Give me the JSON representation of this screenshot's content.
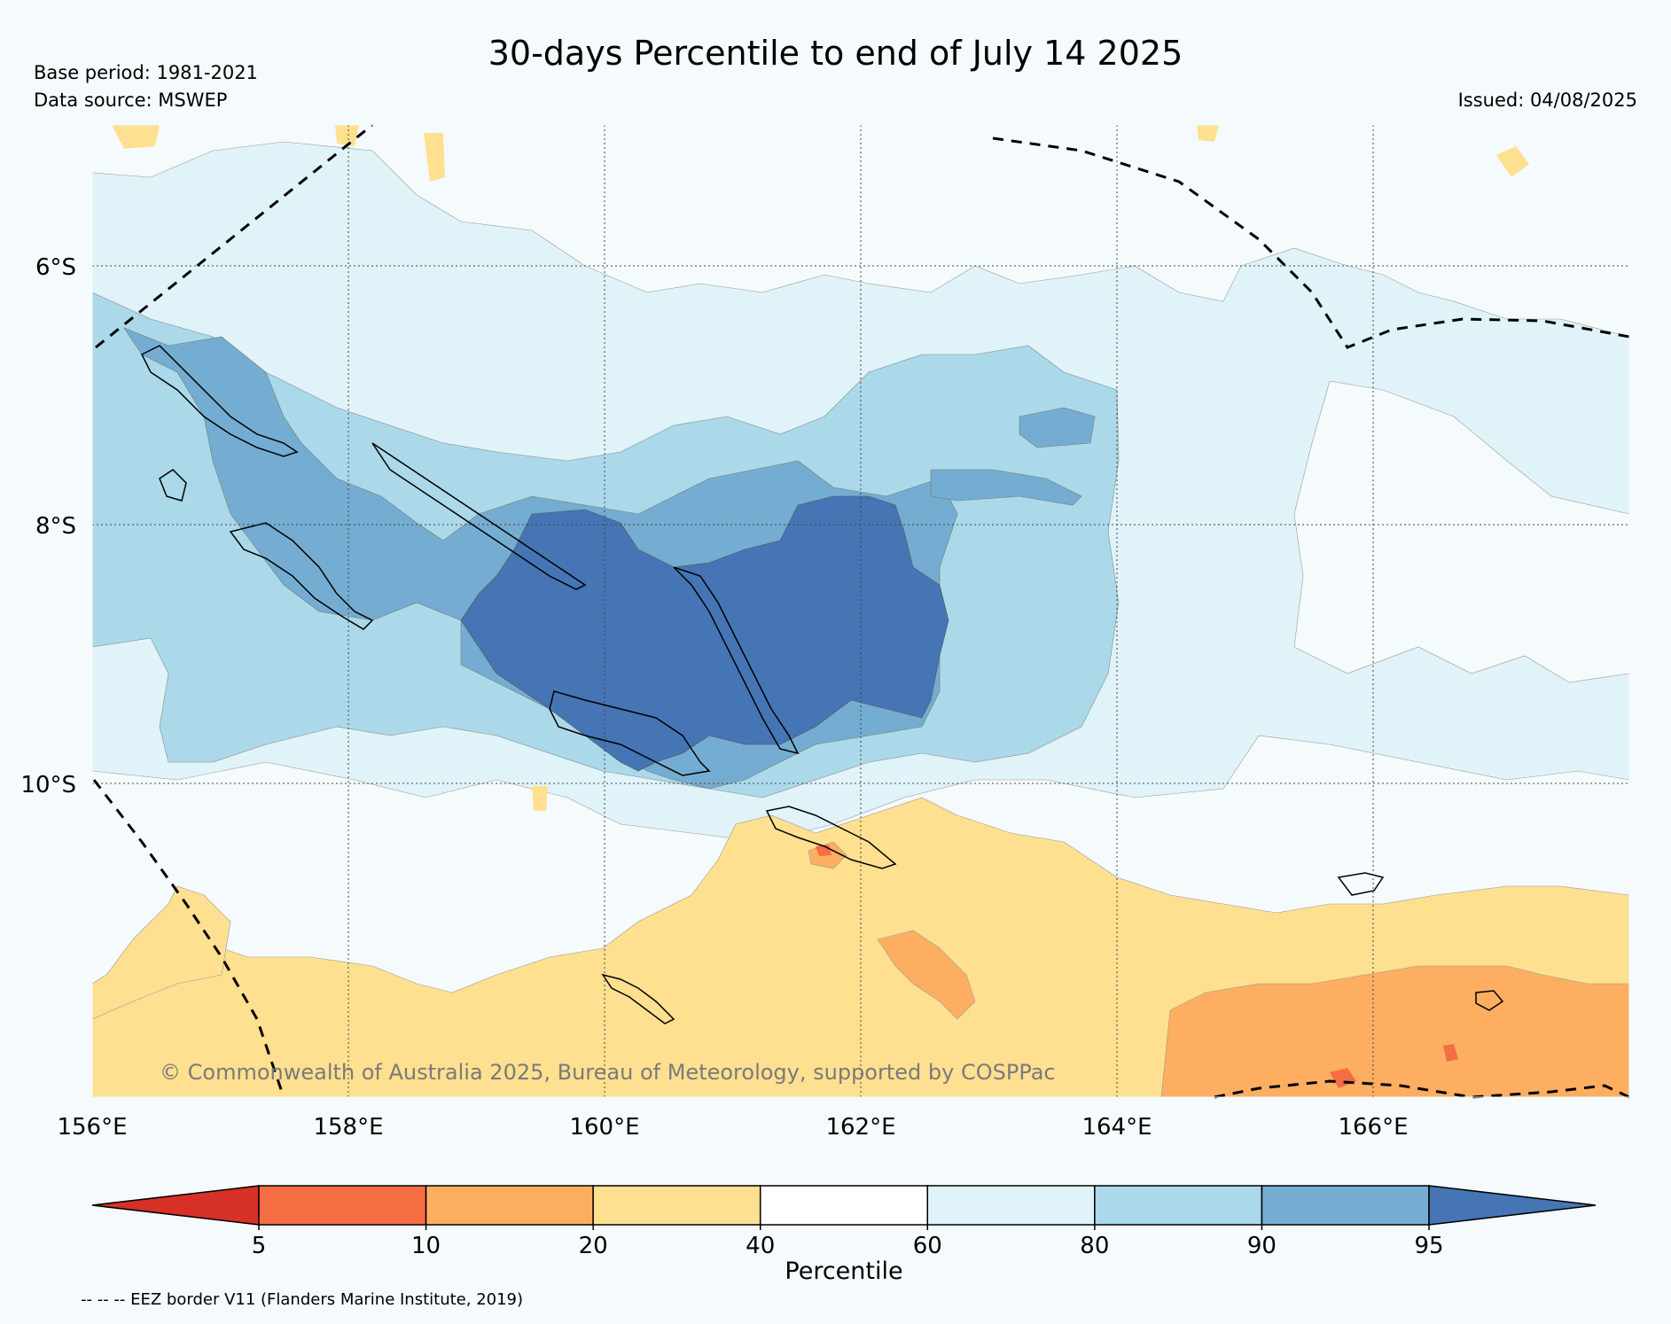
{
  "title": "30-days Percentile to end of July 14 2025",
  "base_period": "Base period: 1981-2021",
  "data_source": "Data source: MSWEP",
  "issued": "Issued: 04/08/2025",
  "copyright": "© Commonwealth of Australia 2025, Bureau of Meteorology, supported by COSPPac",
  "eez_note": "-- -- -- EEZ border V11 (Flanders Marine Institute, 2019)",
  "map": {
    "lat_labels": [
      "6°S",
      "8°S",
      "10°S"
    ],
    "lon_labels": [
      "156°E",
      "158°E",
      "160°E",
      "162°E",
      "164°E",
      "166°E"
    ],
    "extent": {
      "lon": [
        156,
        168
      ],
      "lat": [
        -12.4,
        -4.8
      ]
    }
  },
  "colorbar": {
    "label": "Percentile",
    "ticks": [
      "5",
      "10",
      "20",
      "40",
      "60",
      "80",
      "90",
      "95"
    ],
    "colors": [
      "#d73027",
      "#f46d43",
      "#fdae61",
      "#fee090",
      "#ffffff",
      "#e0f3f8",
      "#abd9e9",
      "#74add1",
      "#4575b4"
    ]
  },
  "colors": {
    "background": "#f5fafc",
    "coast": "#000000",
    "eez": "#000000"
  }
}
